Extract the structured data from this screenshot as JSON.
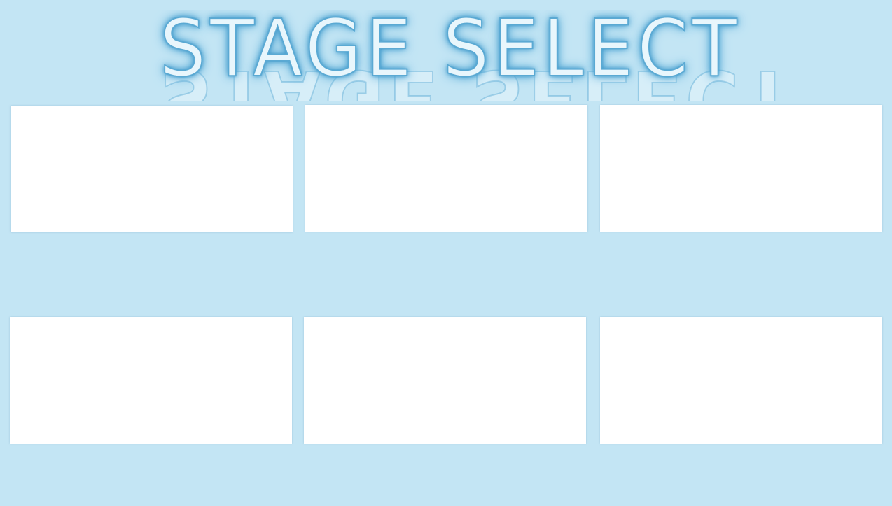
{
  "header": {
    "title": "STAGE SELECT"
  },
  "colors": {
    "background": "#c3e5f4",
    "card": "#ffffff",
    "title_fill": "#e8f6fc",
    "title_glow": "#3a95c8"
  },
  "stages": [
    {
      "label": ""
    },
    {
      "label": ""
    },
    {
      "label": ""
    },
    {
      "label": ""
    },
    {
      "label": ""
    },
    {
      "label": ""
    }
  ]
}
